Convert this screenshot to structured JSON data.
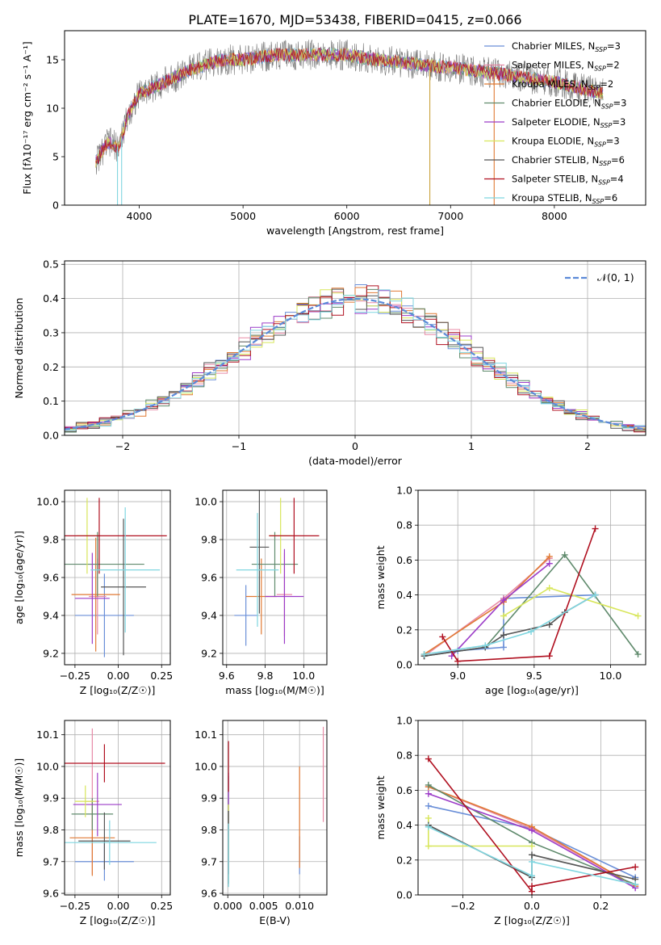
{
  "figure_title": "PLATE=1670, MJD=53438, FIBERID=0415, z=0.066",
  "colors": [
    "#6a8fd8",
    "#e88aa6",
    "#e07a34",
    "#5f8a6c",
    "#9c3cc8",
    "#d8e65a",
    "#555555",
    "#b01020",
    "#7fd6e0"
  ],
  "legend_entries": [
    {
      "name": "Chabrier MILES",
      "n": "3"
    },
    {
      "name": "Salpeter MILES",
      "n": "2"
    },
    {
      "name": "Kroupa MILES",
      "n": "2"
    },
    {
      "name": "Chabrier ELODIE",
      "n": "3"
    },
    {
      "name": "Salpeter ELODIE",
      "n": "3"
    },
    {
      "name": "Kroupa ELODIE",
      "n": "3"
    },
    {
      "name": "Chabrier STELIB",
      "n": "6"
    },
    {
      "name": "Salpeter STELIB",
      "n": "4"
    },
    {
      "name": "Kroupa STELIB",
      "n": "6"
    }
  ],
  "chart_data": [
    {
      "id": "spectrum",
      "type": "line",
      "xlabel": "wavelength [Angstrom, rest frame]",
      "ylabel": "Flux [fλ10⁻¹⁷ erg cm⁻² s⁻¹ A⁻¹]",
      "xlim": [
        3280,
        8880
      ],
      "ylim": [
        0,
        18
      ],
      "xticks": [
        "4000",
        "5000",
        "6000",
        "7000",
        "8000"
      ],
      "xtick_values": [
        4000,
        5000,
        6000,
        7000,
        8000
      ],
      "yticks": [
        "0",
        "5",
        "10",
        "15"
      ],
      "ytick_values": [
        0,
        5,
        10,
        15
      ],
      "x_range": [
        3580,
        8470
      ],
      "continuum": [
        [
          3580,
          4.5
        ],
        [
          3700,
          6.5
        ],
        [
          3800,
          6
        ],
        [
          3900,
          9.5
        ],
        [
          4000,
          11.5
        ],
        [
          4100,
          12
        ],
        [
          4300,
          13
        ],
        [
          4500,
          14
        ],
        [
          4800,
          15
        ],
        [
          5000,
          15
        ],
        [
          5300,
          15.5
        ],
        [
          5600,
          15.5
        ],
        [
          6000,
          15.5
        ],
        [
          6300,
          15
        ],
        [
          6600,
          14.6
        ],
        [
          7000,
          14.2
        ],
        [
          7500,
          13.5
        ],
        [
          8000,
          12.7
        ],
        [
          8470,
          11.5
        ]
      ],
      "data_drops": [
        [
          3790,
          0
        ],
        [
          3830,
          0
        ],
        [
          6800,
          0
        ],
        [
          7420,
          0
        ]
      ]
    },
    {
      "id": "residuals",
      "type": "histogram",
      "xlabel": "(data-model)/error",
      "ylabel": "Normed distribution",
      "xlim": [
        -2.5,
        2.5
      ],
      "ylim": [
        0,
        0.51
      ],
      "xticks": [
        "−2",
        "−1",
        "0",
        "1",
        "2"
      ],
      "xtick_values": [
        -2,
        -1,
        0,
        1,
        2
      ],
      "yticks": [
        "0.0",
        "0.1",
        "0.2",
        "0.3",
        "0.4",
        "0.5"
      ],
      "ytick_values": [
        0,
        0.1,
        0.2,
        0.3,
        0.4,
        0.5
      ],
      "bin_width": 0.1,
      "legend": "𝒩(0, 1)"
    },
    {
      "id": "age-vs-Z",
      "type": "errorbar",
      "xlabel": "Z [log₁₀(Z/Z☉)]",
      "ylabel": "age  [log₁₀(age/yr)]",
      "xlim": [
        -0.31,
        0.3
      ],
      "ylim": [
        9.14,
        10.06
      ],
      "xticks": [
        "−0.25",
        "0.00",
        "0.25"
      ],
      "xtick_values": [
        -0.25,
        0,
        0.25
      ],
      "yticks": [
        "9.2",
        "9.4",
        "9.6",
        "9.8",
        "10.0"
      ],
      "ytick_values": [
        9.2,
        9.4,
        9.6,
        9.8,
        10.0
      ],
      "points": [
        {
          "x": -0.08,
          "y": 9.4,
          "xerr": 0.17,
          "yerr": 0.22
        },
        {
          "x": -0.12,
          "y": 9.5,
          "xerr": 0.05,
          "yerr": 0.2
        },
        {
          "x": -0.13,
          "y": 9.51,
          "xerr": 0.14,
          "yerr": 0.3
        },
        {
          "x": -0.12,
          "y": 9.67,
          "xerr": 0.27,
          "yerr": 0.17
        },
        {
          "x": -0.15,
          "y": 9.49,
          "xerr": 0.1,
          "yerr": 0.24
        },
        {
          "x": -0.18,
          "y": 9.82,
          "xerr": 0.06,
          "yerr": 0.2
        },
        {
          "x": 0.03,
          "y": 9.55,
          "xerr": 0.13,
          "yerr": 0.36
        },
        {
          "x": -0.11,
          "y": 9.82,
          "xerr": 0.39,
          "yerr": 0.2
        },
        {
          "x": 0.04,
          "y": 9.64,
          "xerr": 0.2,
          "yerr": 0.33
        }
      ]
    },
    {
      "id": "age-vs-mass",
      "type": "errorbar",
      "xlabel": "mass [log₁₀(M/M☉)]",
      "ylabel": "",
      "xlim": [
        9.58,
        10.12
      ],
      "ylim": [
        9.14,
        10.06
      ],
      "xticks": [
        "9.6",
        "9.8",
        "10.0"
      ],
      "xtick_values": [
        9.6,
        9.8,
        10.0
      ],
      "yticks": [
        "9.2",
        "9.4",
        "9.6",
        "9.8",
        "10.0"
      ],
      "ytick_values": [
        9.2,
        9.4,
        9.6,
        9.8,
        10.0
      ],
      "points": [
        {
          "x": 9.7,
          "y": 9.4,
          "xerr": 0.06,
          "yerr": 0.16
        },
        {
          "x": 9.9,
          "y": 9.51,
          "xerr": 0.04,
          "yerr": 0.22
        },
        {
          "x": 9.78,
          "y": 9.5,
          "xerr": 0.08,
          "yerr": 0.2
        },
        {
          "x": 9.85,
          "y": 9.67,
          "xerr": 0.12,
          "yerr": 0.17
        },
        {
          "x": 9.9,
          "y": 9.5,
          "xerr": 0.1,
          "yerr": 0.25
        },
        {
          "x": 9.88,
          "y": 9.82,
          "xerr": 0.06,
          "yerr": 0.2
        },
        {
          "x": 9.77,
          "y": 9.76,
          "xerr": 0.05,
          "yerr": 0.35
        },
        {
          "x": 9.95,
          "y": 9.82,
          "xerr": 0.13,
          "yerr": 0.2
        },
        {
          "x": 9.76,
          "y": 9.64,
          "xerr": 0.11,
          "yerr": 0.3
        }
      ]
    },
    {
      "id": "massweight-vs-age",
      "type": "line",
      "xlabel": "age  [log₁₀(age/yr)]",
      "ylabel": "mass weight",
      "xlim": [
        8.74,
        10.23
      ],
      "ylim": [
        0,
        1
      ],
      "xticks": [
        "9.0",
        "9.5",
        "10.0"
      ],
      "xtick_values": [
        9.0,
        9.5,
        10.0
      ],
      "yticks": [
        "0.0",
        "0.2",
        "0.4",
        "0.6",
        "0.8",
        "1.0"
      ],
      "ytick_values": [
        0,
        0.2,
        0.4,
        0.6,
        0.8,
        1.0
      ],
      "series": [
        {
          "x": [
            8.78,
            9.0,
            9.3,
            9.3,
            9.9
          ],
          "y": [
            0.05,
            0.08,
            0.1,
            0.38,
            0.4
          ]
        },
        {
          "x": [
            8.78,
            9.3,
            9.6
          ],
          "y": [
            0.05,
            0.38,
            0.61
          ]
        },
        {
          "x": [
            8.78,
            9.3,
            9.6
          ],
          "y": [
            0.06,
            0.36,
            0.62
          ]
        },
        {
          "x": [
            8.78,
            9.18,
            9.7,
            10.18
          ],
          "y": [
            0.05,
            0.1,
            0.63,
            0.06
          ]
        },
        {
          "x": [
            8.96,
            9.3,
            9.6
          ],
          "y": [
            0.05,
            0.37,
            0.58
          ]
        },
        {
          "x": [
            9.3,
            9.6,
            10.18
          ],
          "y": [
            0.28,
            0.44,
            0.28
          ]
        },
        {
          "x": [
            8.78,
            9.18,
            9.3,
            9.6,
            9.7,
            9.9
          ],
          "y": [
            0.05,
            0.1,
            0.17,
            0.23,
            0.3,
            0.4
          ]
        },
        {
          "x": [
            8.9,
            9.0,
            9.6,
            9.9
          ],
          "y": [
            0.16,
            0.02,
            0.05,
            0.78
          ]
        },
        {
          "x": [
            8.78,
            9.18,
            9.48,
            9.9
          ],
          "y": [
            0.06,
            0.11,
            0.19,
            0.4
          ]
        }
      ]
    },
    {
      "id": "mass-vs-Z",
      "type": "errorbar",
      "xlabel": "Z [log₁₀(Z/Z☉)]",
      "ylabel": "mass [log₁₀(M/M☉)]",
      "xlim": [
        -0.31,
        0.3
      ],
      "ylim": [
        9.595,
        10.145
      ],
      "xticks": [
        "−0.25",
        "0.00",
        "0.25"
      ],
      "xtick_values": [
        -0.25,
        0,
        0.25
      ],
      "yticks": [
        "9.6",
        "9.7",
        "9.8",
        "9.9",
        "10.0",
        "10.1"
      ],
      "ytick_values": [
        9.6,
        9.7,
        9.8,
        9.9,
        10.0,
        10.1
      ],
      "points": [
        {
          "x": -0.08,
          "y": 9.7,
          "xerr": 0.17,
          "yerr": 0.06
        },
        {
          "x": -0.15,
          "y": 9.89,
          "xerr": 0.04,
          "yerr": 0.23
        },
        {
          "x": -0.15,
          "y": 9.775,
          "xerr": 0.13,
          "yerr": 0.12
        },
        {
          "x": -0.15,
          "y": 9.85,
          "xerr": 0.12,
          "yerr": 0.05
        },
        {
          "x": -0.12,
          "y": 9.88,
          "xerr": 0.14,
          "yerr": 0.1
        },
        {
          "x": -0.19,
          "y": 9.89,
          "xerr": 0.06,
          "yerr": 0.05
        },
        {
          "x": -0.08,
          "y": 9.765,
          "xerr": 0.15,
          "yerr": 0.09
        },
        {
          "x": -0.08,
          "y": 10.01,
          "xerr": 0.35,
          "yerr": 0.06
        },
        {
          "x": -0.05,
          "y": 9.76,
          "xerr": 0.27,
          "yerr": 0.07
        }
      ]
    },
    {
      "id": "mass-vs-EBV",
      "type": "errorbar",
      "xlabel": "E(B-V)",
      "ylabel": "",
      "xlim": [
        -0.0007,
        0.0138
      ],
      "ylim": [
        9.595,
        10.145
      ],
      "xticks": [
        "0.000",
        "0.005",
        "0.010"
      ],
      "xtick_values": [
        0,
        0.005,
        0.01
      ],
      "yticks": [
        "9.6",
        "9.7",
        "9.8",
        "9.9",
        "10.0",
        "10.1"
      ],
      "ytick_values": [
        9.6,
        9.7,
        9.8,
        9.9,
        10.0,
        10.1
      ],
      "points": [
        {
          "x": 0.01,
          "y": 9.72,
          "xerr": 0,
          "yerr": 0.06
        },
        {
          "x": 0.0133,
          "y": 9.975,
          "xerr": 0,
          "yerr": 0.15
        },
        {
          "x": 0.01,
          "y": 9.84,
          "xerr": 0,
          "yerr": 0.16
        },
        {
          "x": 0.0001,
          "y": 9.8,
          "xerr": 0,
          "yerr": 0.17
        },
        {
          "x": 0.0001,
          "y": 9.88,
          "xerr": 0,
          "yerr": 0.1
        },
        {
          "x": 0.0001,
          "y": 9.8,
          "xerr": 0,
          "yerr": 0.08
        },
        {
          "x": 0.0001,
          "y": 9.76,
          "xerr": 0,
          "yerr": 0.1
        },
        {
          "x": 0.0001,
          "y": 10.0,
          "xerr": 0,
          "yerr": 0.08
        },
        {
          "x": 0.0001,
          "y": 9.72,
          "xerr": 0,
          "yerr": 0.1
        }
      ]
    },
    {
      "id": "massweight-vs-Z",
      "type": "line",
      "xlabel": "Z [log₁₀(Z/Z☉)]",
      "ylabel": "mass weight",
      "xlim": [
        -0.33,
        0.33
      ],
      "ylim": [
        0,
        1
      ],
      "xticks": [
        "−0.2",
        "0.0",
        "0.2"
      ],
      "xtick_values": [
        -0.2,
        0,
        0.2
      ],
      "yticks": [
        "0.0",
        "0.2",
        "0.4",
        "0.6",
        "0.8",
        "1.0"
      ],
      "ytick_values": [
        0,
        0.2,
        0.4,
        0.6,
        0.8,
        1.0
      ],
      "series": [
        {
          "x": [
            -0.3,
            0.0,
            0.3
          ],
          "y": [
            0.51,
            0.38,
            0.1
          ]
        },
        {
          "x": [
            -0.3,
            0.0,
            0.3
          ],
          "y": [
            0.62,
            0.38,
            0.05
          ]
        },
        {
          "x": [
            -0.3,
            0.0,
            0.3
          ],
          "y": [
            0.62,
            0.39,
            0.05
          ]
        },
        {
          "x": [
            -0.3,
            0.0,
            0.3
          ],
          "y": [
            0.63,
            0.3,
            0.06
          ]
        },
        {
          "x": [
            -0.3,
            0.0,
            0.3
          ],
          "y": [
            0.58,
            0.37,
            0.04
          ]
        },
        {
          "x": [
            -0.3,
            -0.3,
            0.0
          ],
          "y": [
            0.44,
            0.28,
            0.28
          ]
        },
        {
          "x": [
            -0.3,
            0.0,
            0.0,
            0.3
          ],
          "y": [
            0.4,
            0.1,
            0.23,
            0.09
          ]
        },
        {
          "x": [
            -0.3,
            0.0,
            0.0,
            0.3
          ],
          "y": [
            0.78,
            0.02,
            0.05,
            0.16
          ]
        },
        {
          "x": [
            -0.3,
            0.0,
            0.0,
            0.3
          ],
          "y": [
            0.39,
            0.11,
            0.19,
            0.06
          ]
        }
      ]
    }
  ]
}
